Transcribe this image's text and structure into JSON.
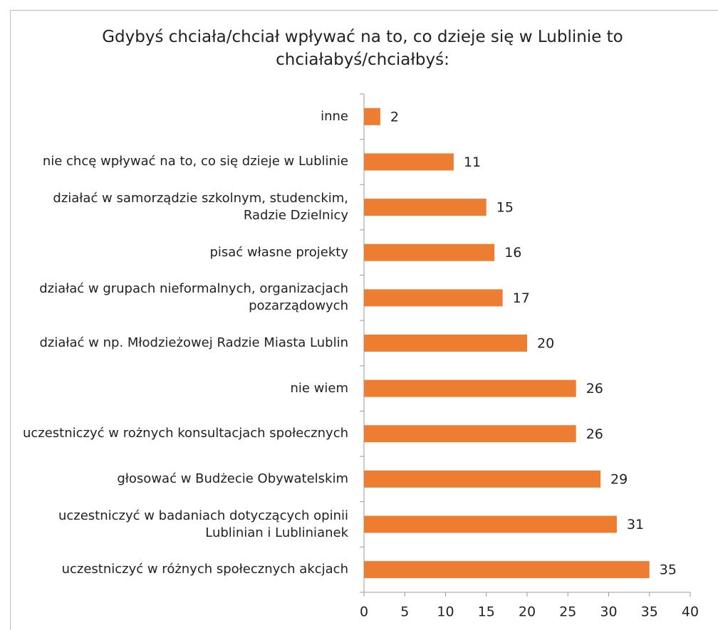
{
  "chart_data": {
    "type": "bar",
    "orientation": "horizontal",
    "title": "Gdybyś chciała/chciał wpływać na to, co dzieje się w Lublinie to chciałabyś/chciałbyś:",
    "categories": [
      "inne",
      "nie chcę wpływać na to, co się dzieje w Lublinie",
      "działać w samorządzie szkolnym, studenckim, Radzie Dzielnicy",
      "pisać własne projekty",
      "działać w grupach nieformalnych, organizacjach pozarządowych",
      "działać w np. Młodzieżowej Radzie  Miasta Lublin",
      "nie wiem",
      "uczestniczyć w rożnych konsultacjach społecznych",
      "głosować w Budżecie Obywatelskim",
      "uczestniczyć w badaniach dotyczących opinii Lublinian i Lublinianek",
      "uczestniczyć w różnych społecznych akcjach"
    ],
    "values": [
      2,
      11,
      15,
      16,
      17,
      20,
      26,
      26,
      29,
      31,
      35
    ],
    "color": "#ed7d31",
    "xlim": [
      0,
      40
    ],
    "xticks": [
      0,
      5,
      10,
      15,
      20,
      25,
      30,
      35,
      40
    ]
  }
}
